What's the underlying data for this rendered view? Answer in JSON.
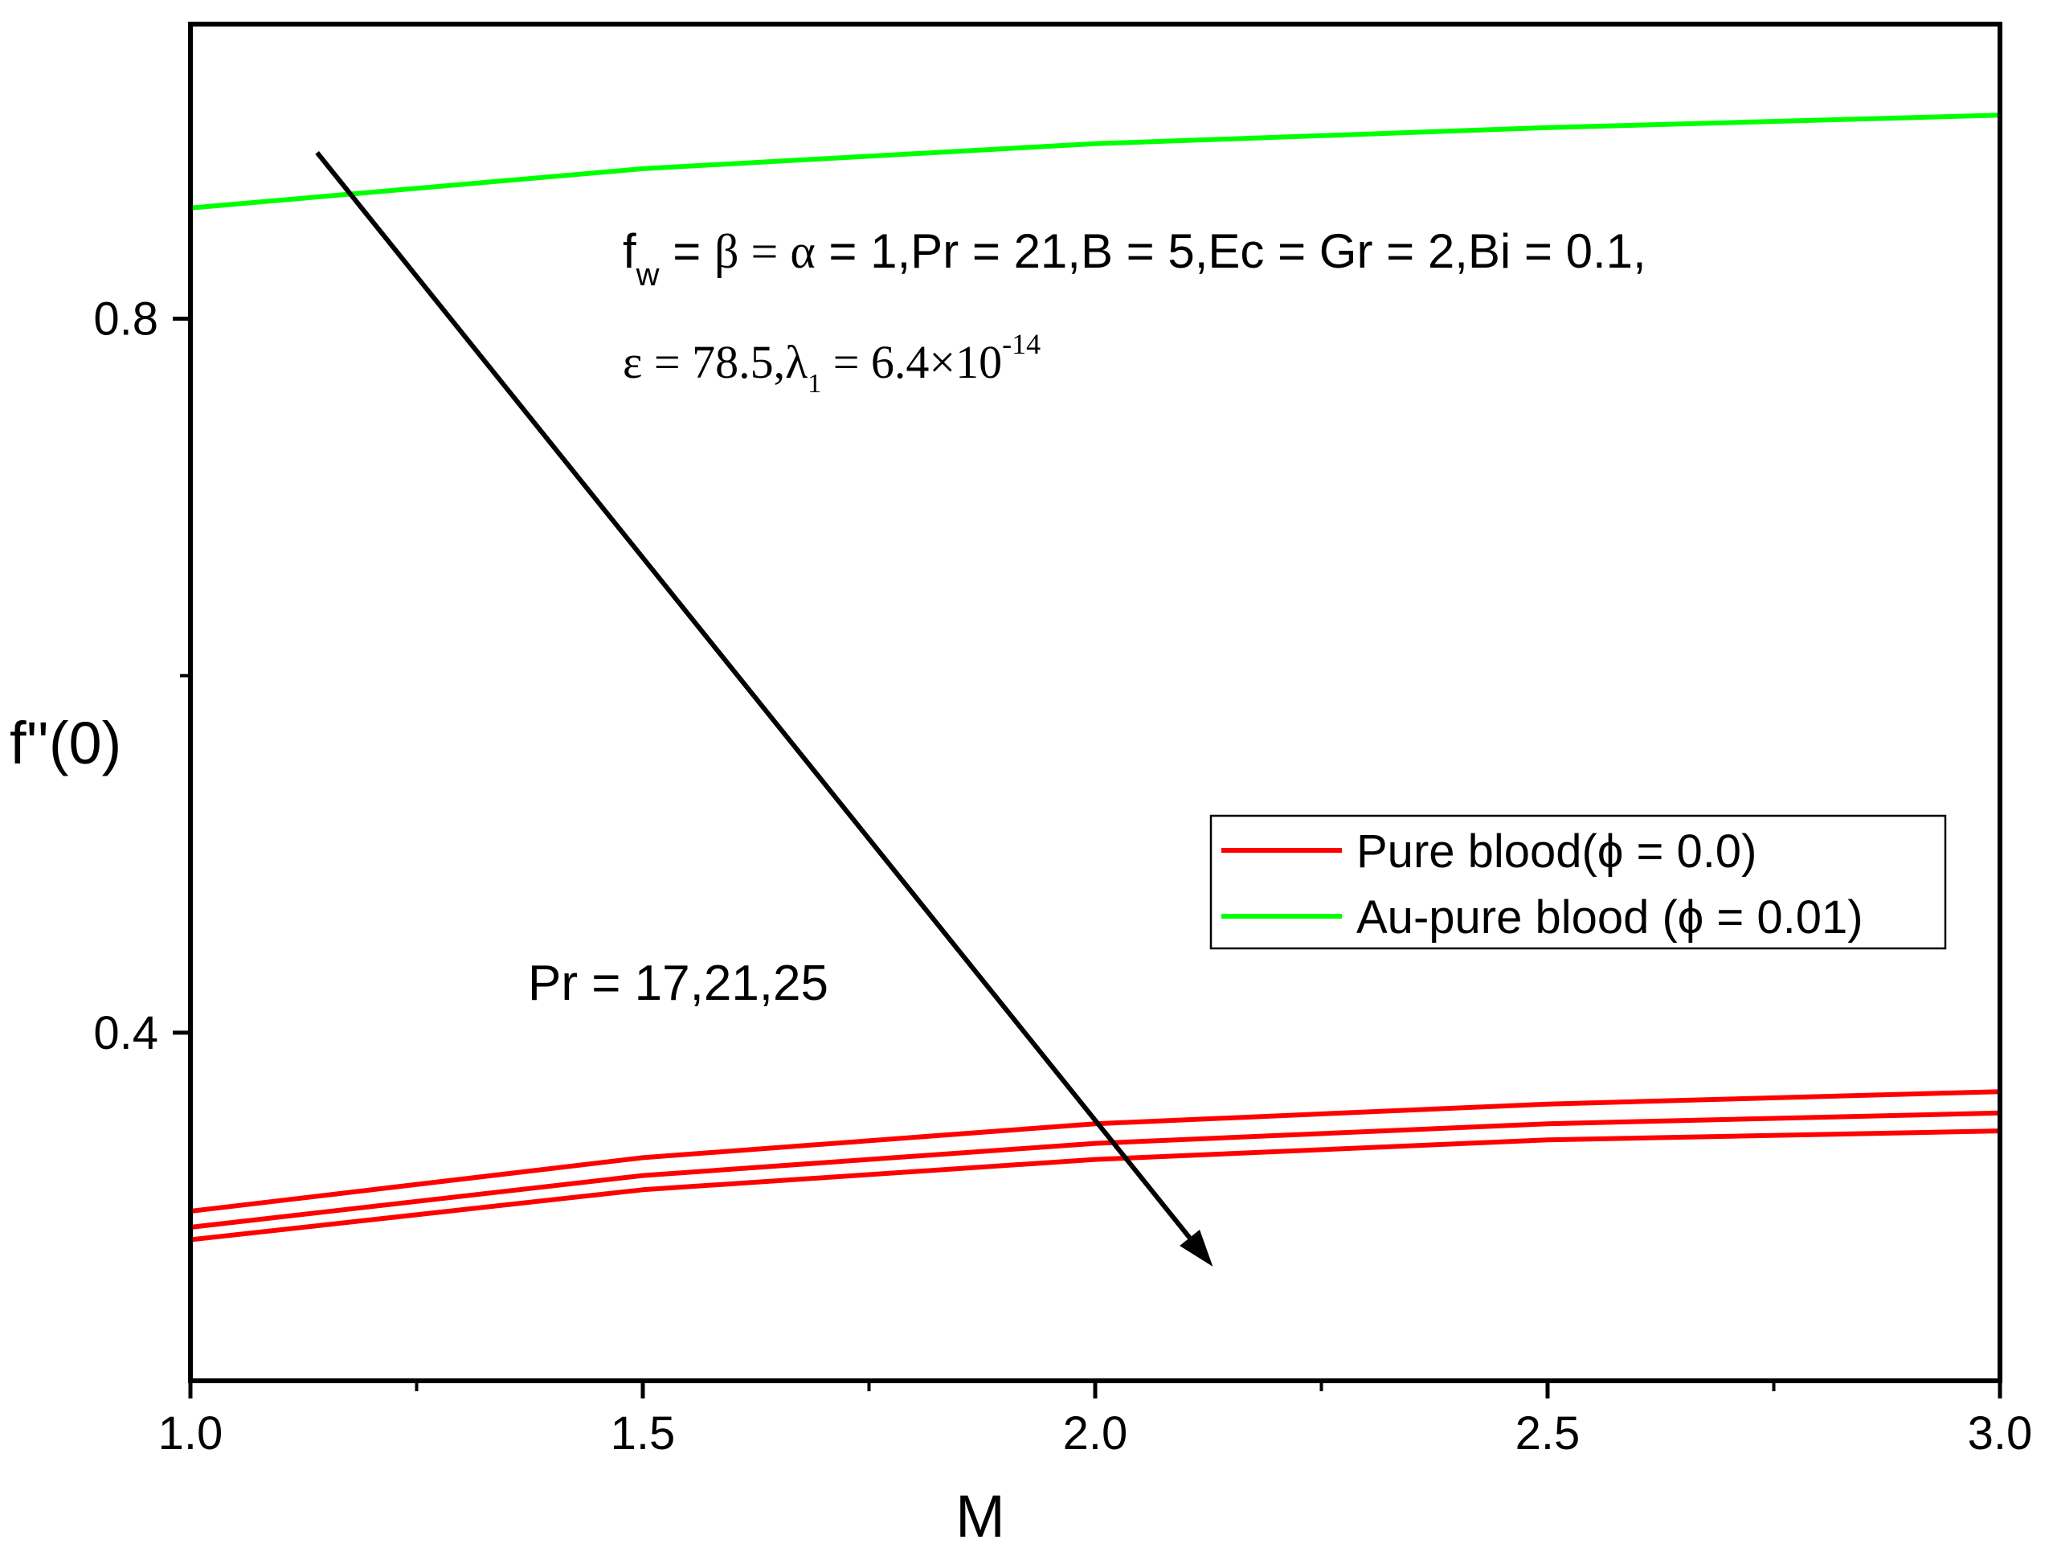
{
  "chart_data": {
    "type": "line",
    "title": "",
    "xlabel": "M",
    "ylabel": "f''(0)",
    "xlim": [
      1.0,
      3.0
    ],
    "ylim": [
      0.205,
      0.965
    ],
    "x": [
      1.0,
      1.5,
      2.0,
      2.5,
      3.0
    ],
    "x_ticks": [
      1.0,
      1.5,
      2.0,
      2.5,
      3.0
    ],
    "x_tick_labels": [
      "1.0",
      "1.5",
      "2.0",
      "2.5",
      "3.0"
    ],
    "y_ticks": [
      0.4,
      0.8
    ],
    "y_tick_labels": [
      "0.4",
      "0.8"
    ],
    "y_minor_ticks": [
      0.6
    ],
    "series": [
      {
        "name": "Pure blood(ϕ = 0.0), Pr = 17",
        "legend": "pure",
        "color": "#ff0000",
        "values": [
          0.3,
          0.33,
          0.349,
          0.36,
          0.367
        ]
      },
      {
        "name": "Pure blood(ϕ = 0.0), Pr = 21",
        "legend": "pure",
        "color": "#ff0000",
        "values": [
          0.291,
          0.32,
          0.338,
          0.349,
          0.355
        ]
      },
      {
        "name": "Pure blood(ϕ = 0.0), Pr = 25",
        "legend": "pure",
        "color": "#ff0000",
        "values": [
          0.284,
          0.312,
          0.329,
          0.34,
          0.345
        ]
      },
      {
        "name": "Au-pure blood (ϕ = 0.01)",
        "legend": "au",
        "color": "#00ff00",
        "values": [
          0.862,
          0.884,
          0.898,
          0.907,
          0.914
        ]
      }
    ],
    "legend": {
      "placement": "center-right",
      "entries": [
        {
          "label": "Pure blood(ϕ = 0.0)",
          "color": "#ff0000"
        },
        {
          "label": "Au-pure blood (ϕ = 0.01)",
          "color": "#00ff00"
        }
      ]
    },
    "annotations": {
      "arrow_label": "Pr = 17,21,25",
      "params_line1": {
        "f": "f",
        "w": "w",
        "eq1": " = ",
        "beta": "β",
        "eq2": " = ",
        "alpha": "α",
        "rest": " = 1,Pr = 21,B = 5,Ec = Gr = 2,Bi = 0.1,"
      },
      "params_line2": {
        "eps": "ε = 78.5,λ",
        "sub": "1",
        "mid": " = 6.4×10",
        "sup": "-14"
      }
    },
    "arrow": {
      "from": [
        1.14,
        0.893
      ],
      "to": [
        2.13,
        0.269
      ]
    }
  }
}
